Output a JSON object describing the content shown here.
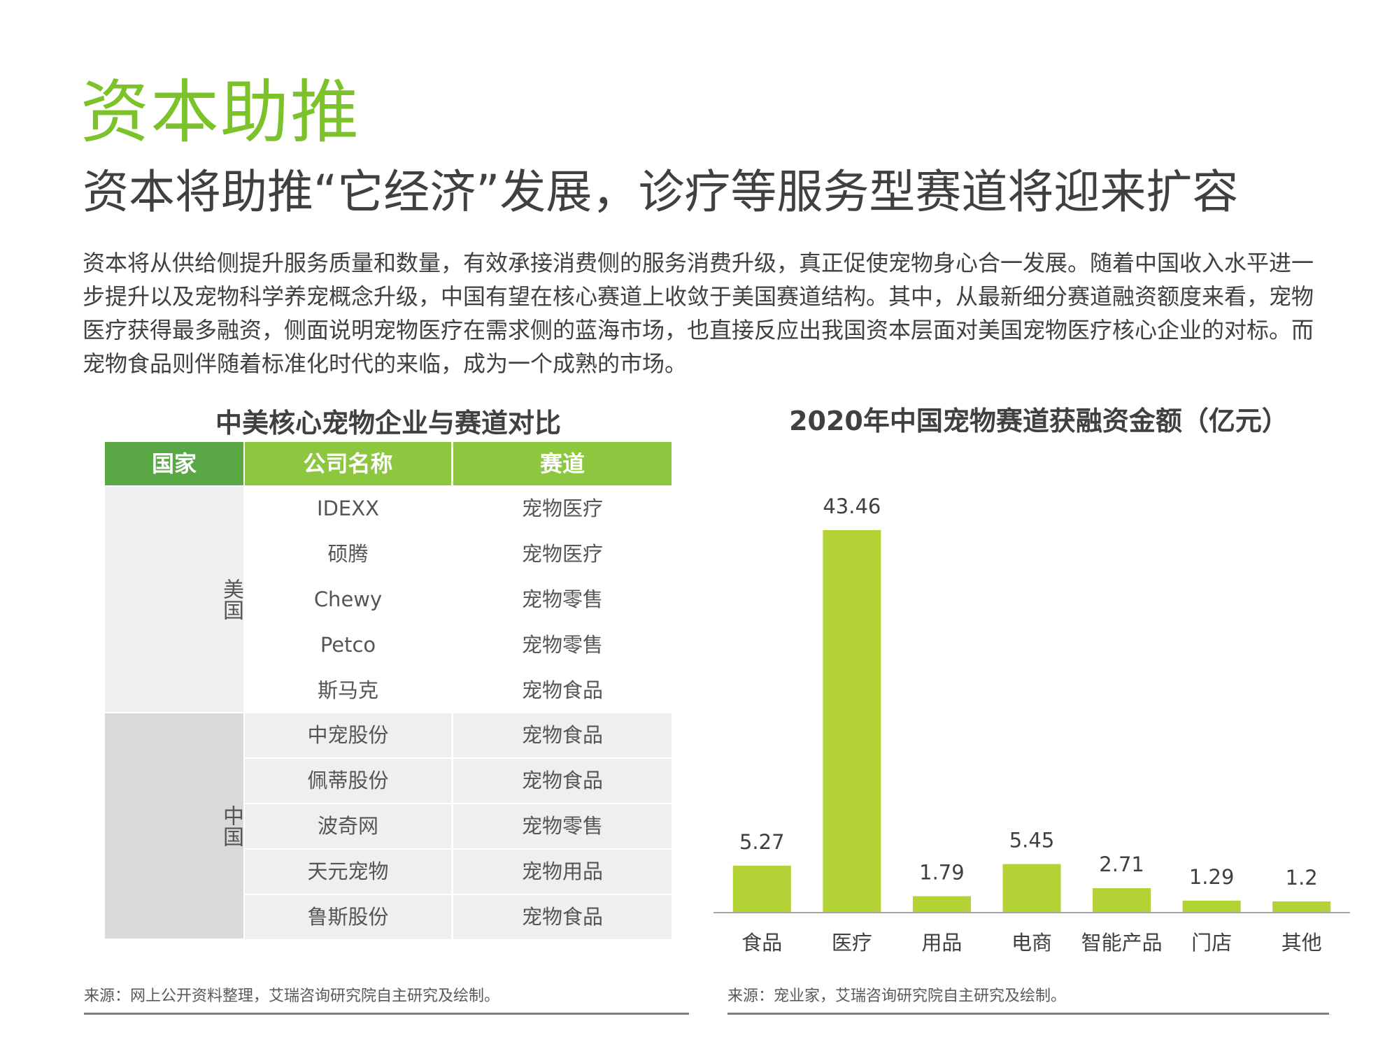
{
  "page": {
    "section_title": "资本助推",
    "headline": "资本将助推“它经济”发展，诊疗等服务型赛道将迎来扩容",
    "body": "资本将从供给侧提升服务质量和数量，有效承接消费侧的服务消费升级，真正促使宠物身心合一发展。随着中国收入水平进一步提升以及宠物科学养宠概念升级，中国有望在核心赛道上收敛于美国赛道结构。其中，从最新细分赛道融资额度来看，宠物医疗获得最多融资，侧面说明宠物医疗在需求侧的蓝海市场，也直接反应出我国资本层面对美国宠物医疗核心企业的对标。而宠物食品则伴随着标准化时代的来临，成为一个成熟的市场。"
  },
  "table": {
    "title": "中美核心宠物企业与赛道对比",
    "headers": [
      "国家",
      "公司名称",
      "赛道"
    ],
    "header_colors": [
      "#5aa845",
      "#8dc63f",
      "#8dc63f"
    ],
    "groups": [
      {
        "country": "美国",
        "rows": [
          {
            "company": "IDEXX",
            "track": "宠物医疗"
          },
          {
            "company": "硕腾",
            "track": "宠物医疗"
          },
          {
            "company": "Chewy",
            "track": "宠物零售"
          },
          {
            "company": "Petco",
            "track": "宠物零售"
          },
          {
            "company": "斯马克",
            "track": "宠物食品"
          }
        ]
      },
      {
        "country": "中国",
        "rows": [
          {
            "company": "中宠股份",
            "track": "宠物食品"
          },
          {
            "company": "佩蒂股份",
            "track": "宠物食品"
          },
          {
            "company": "波奇网",
            "track": "宠物零售"
          },
          {
            "company": "天元宠物",
            "track": "宠物用品"
          },
          {
            "company": "鲁斯股份",
            "track": "宠物食品"
          }
        ]
      }
    ],
    "source": "来源：网上公开资料整理，艾瑞咨询研究院自主研究及绘制。"
  },
  "chart_data": {
    "type": "bar",
    "title": "2020年中国宠物赛道获融资金额（亿元）",
    "categories": [
      "食品",
      "医疗",
      "用品",
      "电商",
      "智能产品",
      "门店",
      "其他"
    ],
    "values": [
      5.27,
      43.46,
      1.79,
      5.45,
      2.71,
      1.29,
      1.2
    ],
    "value_labels": [
      "5.27",
      "43.46",
      "1.79",
      "5.45",
      "2.71",
      "1.29",
      "1.2"
    ],
    "bar_color": "#b2d235",
    "grid": false,
    "legend": "none",
    "source": "来源：宠业家，艾瑞咨询研究院自主研究及绘制。"
  }
}
